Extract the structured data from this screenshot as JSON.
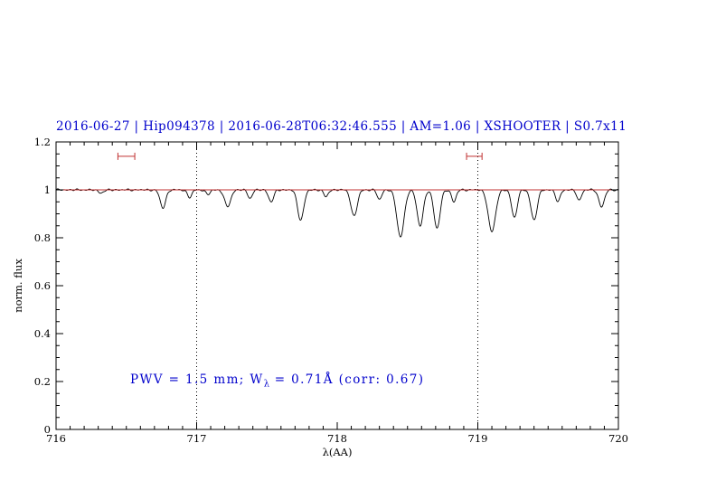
{
  "title": {
    "text": "2016-06-27 | Hip094378 | 2016-06-28T06:32:46.555 | AM=1.06 | XSHOOTER | S0.7x11"
  },
  "annotation": {
    "prefix": "PWV = 1.5 mm; W",
    "sub": "λ",
    "suffix": " = 0.71Å (corr: 0.67)"
  },
  "colors": {
    "blue": "#0000cc",
    "red": "#c03030",
    "black": "#000000"
  },
  "chart_data": {
    "type": "line",
    "title": "2016-06-27 | Hip094378 | 2016-06-28T06:32:46.555 | AM=1.06 | XSHOOTER | S0.7x11",
    "xlabel": "λ(AA)",
    "ylabel": "norm. flux",
    "xlim": [
      716,
      720
    ],
    "ylim": [
      0,
      1.2
    ],
    "xticks": [
      716,
      717,
      718,
      719,
      720
    ],
    "xtick_labels": [
      "716",
      "717",
      "718",
      "719",
      "720"
    ],
    "yticks": [
      0,
      0.2,
      0.4,
      0.6,
      0.8,
      1.0,
      1.2
    ],
    "ytick_labels": [
      "0",
      "0.2",
      "0.4",
      "0.6",
      "0.8",
      "1",
      "1.2"
    ],
    "x_minor_step": 0.1,
    "y_minor_step": 0.05,
    "grid": false,
    "vlines": {
      "x": [
        717,
        719
      ],
      "style": "dotted",
      "color": "#000000"
    },
    "continuum": {
      "y": 1.0,
      "color": "#c03030"
    },
    "marker_color": "#c03030",
    "range_markers": [
      {
        "x1": 716.44,
        "x2": 716.56,
        "y": 1.14
      },
      {
        "x1": 718.92,
        "x2": 719.03,
        "y": 1.14
      }
    ],
    "spectrum": {
      "color": "#000000",
      "samples": 1600,
      "noise_amp": 0.0045,
      "continuum_level": 1.0,
      "absorption_lines": [
        {
          "center": 716.32,
          "depth": 0.012,
          "sigma": 0.02
        },
        {
          "center": 716.76,
          "depth": 0.075,
          "sigma": 0.02
        },
        {
          "center": 716.95,
          "depth": 0.032,
          "sigma": 0.016
        },
        {
          "center": 717.08,
          "depth": 0.02,
          "sigma": 0.015
        },
        {
          "center": 717.22,
          "depth": 0.07,
          "sigma": 0.022
        },
        {
          "center": 717.38,
          "depth": 0.035,
          "sigma": 0.016
        },
        {
          "center": 717.53,
          "depth": 0.05,
          "sigma": 0.018
        },
        {
          "center": 717.74,
          "depth": 0.125,
          "sigma": 0.022
        },
        {
          "center": 717.92,
          "depth": 0.03,
          "sigma": 0.015
        },
        {
          "center": 718.12,
          "depth": 0.11,
          "sigma": 0.022
        },
        {
          "center": 718.3,
          "depth": 0.04,
          "sigma": 0.016
        },
        {
          "center": 718.45,
          "depth": 0.195,
          "sigma": 0.026
        },
        {
          "center": 718.59,
          "depth": 0.15,
          "sigma": 0.022
        },
        {
          "center": 718.71,
          "depth": 0.16,
          "sigma": 0.022
        },
        {
          "center": 718.83,
          "depth": 0.05,
          "sigma": 0.016
        },
        {
          "center": 719.1,
          "depth": 0.175,
          "sigma": 0.026
        },
        {
          "center": 719.26,
          "depth": 0.115,
          "sigma": 0.02
        },
        {
          "center": 719.4,
          "depth": 0.125,
          "sigma": 0.022
        },
        {
          "center": 719.57,
          "depth": 0.05,
          "sigma": 0.016
        },
        {
          "center": 719.72,
          "depth": 0.045,
          "sigma": 0.016
        },
        {
          "center": 719.88,
          "depth": 0.07,
          "sigma": 0.02
        }
      ]
    }
  }
}
